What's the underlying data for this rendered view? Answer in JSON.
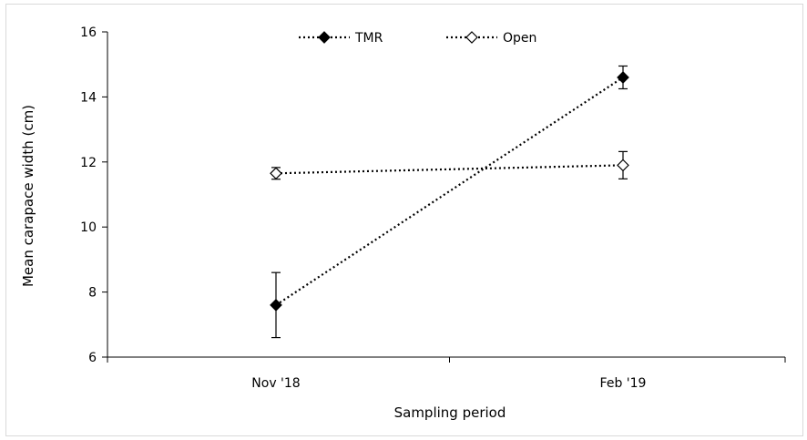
{
  "chart_data": {
    "type": "line",
    "title": "",
    "xlabel": "Sampling period",
    "ylabel": "Mean carapace width (cm)",
    "categories": [
      "Nov '18",
      "Feb '19"
    ],
    "ylim": [
      6,
      16
    ],
    "yticks": [
      6,
      8,
      10,
      12,
      14,
      16
    ],
    "grid": false,
    "legend_position": "top-center",
    "series": [
      {
        "name": "TMR",
        "values": [
          7.6,
          14.6
        ],
        "errors": [
          1.0,
          0.35
        ],
        "marker": "filled-diamond",
        "line_style": "dotted",
        "color": "#000000"
      },
      {
        "name": "Open",
        "values": [
          11.65,
          11.9
        ],
        "errors": [
          0.18,
          0.42
        ],
        "marker": "open-diamond",
        "line_style": "dotted",
        "color": "#000000"
      }
    ]
  }
}
